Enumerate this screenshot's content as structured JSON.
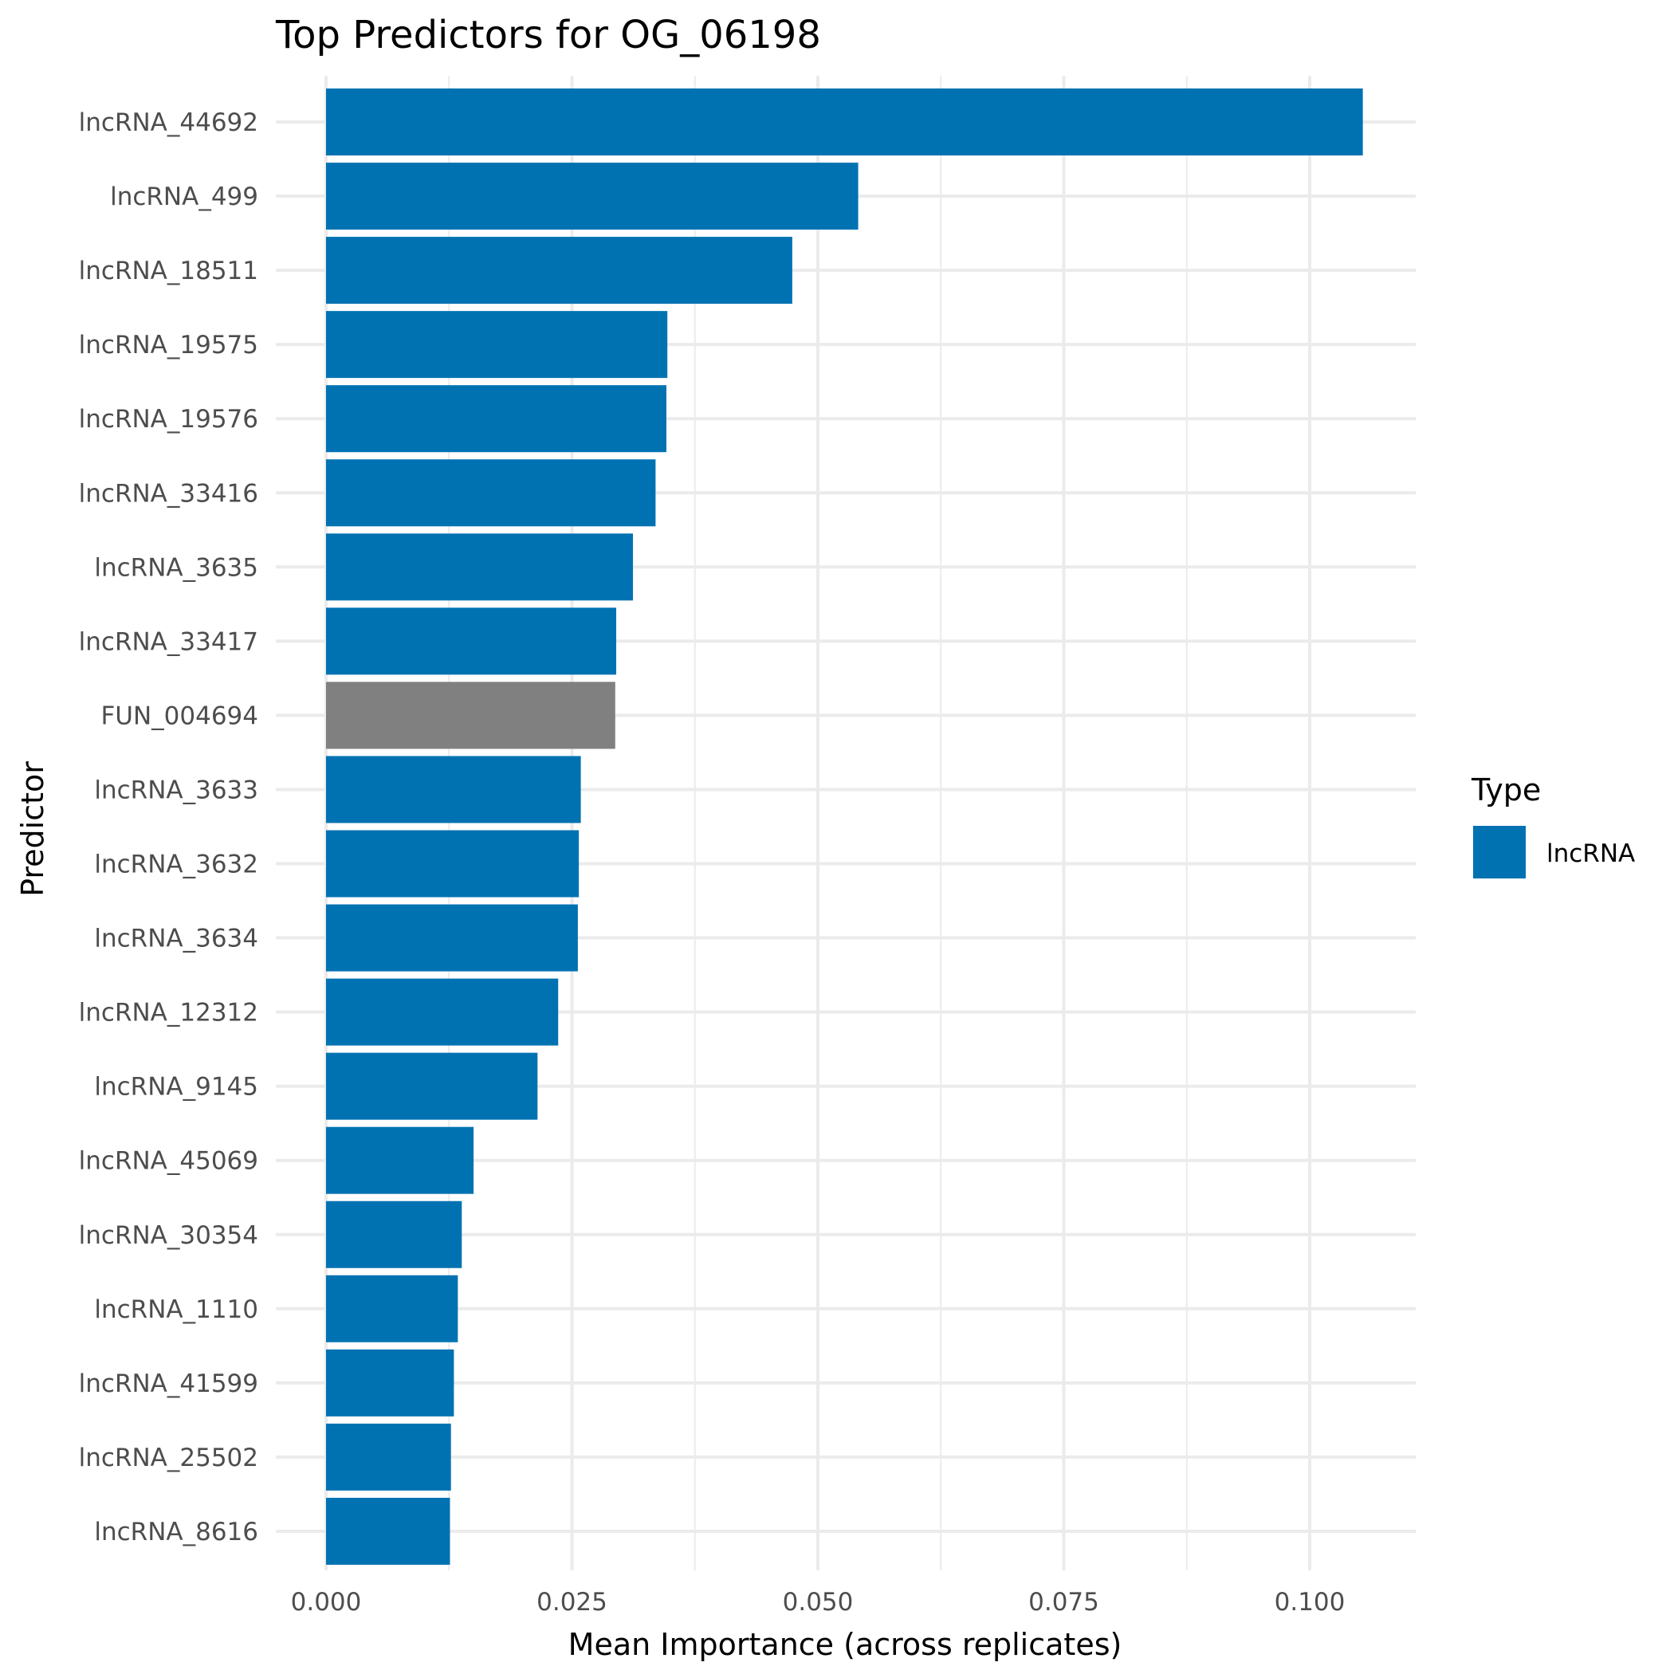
{
  "chart_data": {
    "type": "bar",
    "orientation": "horizontal",
    "title": "Top Predictors for OG_06198",
    "xlabel": "Mean Importance (across replicates)",
    "ylabel": "Predictor",
    "xlim": [
      0,
      0.11
    ],
    "x_ticks": [
      0.0,
      0.025,
      0.05,
      0.075,
      0.1
    ],
    "x_tick_labels": [
      "0.000",
      "0.025",
      "0.050",
      "0.075",
      "0.100"
    ],
    "grid": true,
    "legend": {
      "title": "Type",
      "placement": "right",
      "entries": [
        {
          "label": "lncRNA",
          "color": "#0072B2"
        }
      ]
    },
    "categories": [
      "lncRNA_44692",
      "lncRNA_499",
      "lncRNA_18511",
      "lncRNA_19575",
      "lncRNA_19576",
      "lncRNA_33416",
      "lncRNA_3635",
      "lncRNA_33417",
      "FUN_004694",
      "lncRNA_3633",
      "lncRNA_3632",
      "lncRNA_3634",
      "lncRNA_12312",
      "lncRNA_9145",
      "lncRNA_45069",
      "lncRNA_30354",
      "lncRNA_1110",
      "lncRNA_41599",
      "lncRNA_25502",
      "lncRNA_8616"
    ],
    "values": [
      0.1054,
      0.0541,
      0.0474,
      0.0347,
      0.0346,
      0.0335,
      0.0312,
      0.0295,
      0.0294,
      0.0259,
      0.0257,
      0.0256,
      0.0236,
      0.0215,
      0.015,
      0.0138,
      0.0134,
      0.013,
      0.0127,
      0.0126
    ],
    "types": [
      "lncRNA",
      "lncRNA",
      "lncRNA",
      "lncRNA",
      "lncRNA",
      "lncRNA",
      "lncRNA",
      "lncRNA",
      "",
      "lncRNA",
      "lncRNA",
      "lncRNA",
      "lncRNA",
      "lncRNA",
      "lncRNA",
      "lncRNA",
      "lncRNA",
      "lncRNA",
      "lncRNA",
      "lncRNA"
    ],
    "colors": {
      "lncRNA": "#0072B2",
      "other": "#808080"
    }
  }
}
